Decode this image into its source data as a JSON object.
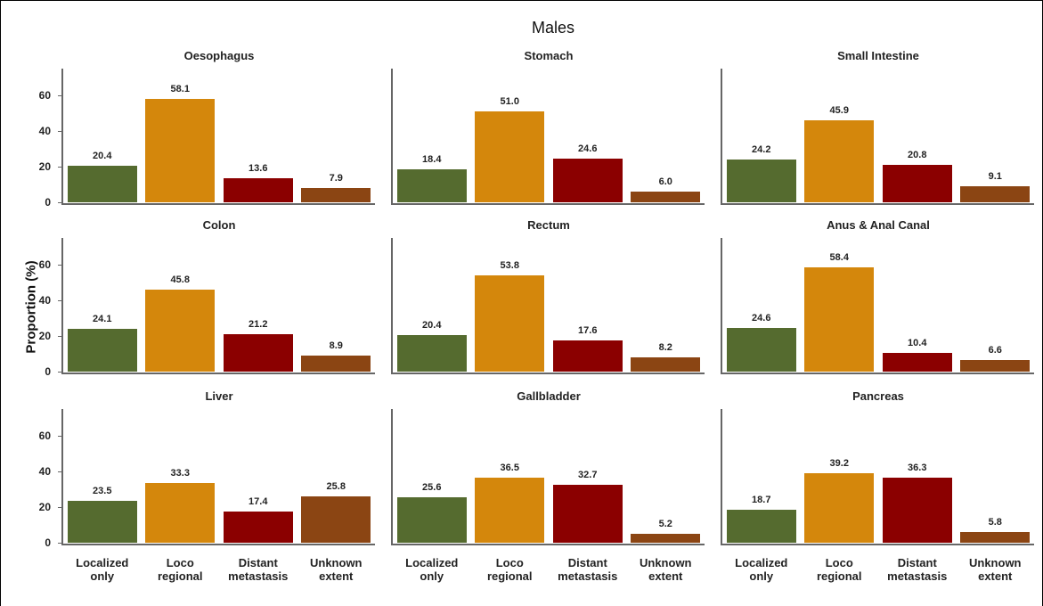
{
  "chart_data": {
    "type": "bar",
    "title": "Males",
    "y_label": "Proportion (%)",
    "categories": [
      "Localized only",
      "Loco regional",
      "Distant metastasis",
      "Unknown extent"
    ],
    "colors": [
      "#556b2f",
      "#d4870c",
      "#8b0000",
      "#8b4513"
    ],
    "ylim": [
      0,
      75
    ],
    "yticks": [
      0,
      20,
      40,
      60
    ],
    "facets": [
      {
        "title": "Oesophagus",
        "values": [
          20.4,
          58.1,
          13.6,
          7.9
        ],
        "value_labels": [
          "20.4",
          "58.1",
          "13.6",
          "7.9"
        ]
      },
      {
        "title": "Stomach",
        "values": [
          18.4,
          51.0,
          24.6,
          6.0
        ],
        "value_labels": [
          "18.4",
          "51.0",
          "24.6",
          "6.0"
        ]
      },
      {
        "title": "Small Intestine",
        "values": [
          24.2,
          45.9,
          20.8,
          9.1
        ],
        "value_labels": [
          "24.2",
          "45.9",
          "20.8",
          "9.1"
        ]
      },
      {
        "title": "Colon",
        "values": [
          24.1,
          45.8,
          21.2,
          8.9
        ],
        "value_labels": [
          "24.1",
          "45.8",
          "21.2",
          "8.9"
        ]
      },
      {
        "title": "Rectum",
        "values": [
          20.4,
          53.8,
          17.6,
          8.2
        ],
        "value_labels": [
          "20.4",
          "53.8",
          "17.6",
          "8.2"
        ]
      },
      {
        "title": "Anus & Anal Canal",
        "values": [
          24.6,
          58.4,
          10.4,
          6.6
        ],
        "value_labels": [
          "24.6",
          "58.4",
          "10.4",
          "6.6"
        ]
      },
      {
        "title": "Liver",
        "values": [
          23.5,
          33.3,
          17.4,
          25.8
        ],
        "value_labels": [
          "23.5",
          "33.3",
          "17.4",
          "25.8"
        ]
      },
      {
        "title": "Gallbladder",
        "values": [
          25.6,
          36.5,
          32.7,
          5.2
        ],
        "value_labels": [
          "25.6",
          "36.5",
          "32.7",
          "5.2"
        ]
      },
      {
        "title": "Pancreas",
        "values": [
          18.7,
          39.2,
          36.3,
          5.8
        ],
        "value_labels": [
          "18.7",
          "39.2",
          "36.3",
          "5.8"
        ]
      }
    ]
  }
}
